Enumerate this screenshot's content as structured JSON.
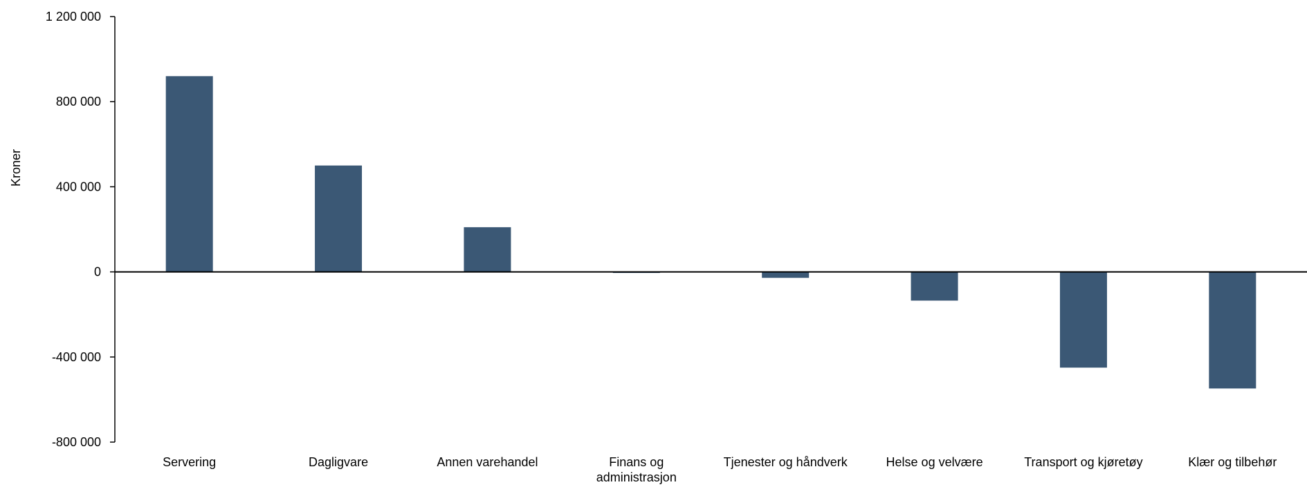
{
  "chart_data": {
    "type": "bar",
    "title": "",
    "xlabel": "",
    "ylabel": "Kroner",
    "ylim": [
      -800000,
      1200000
    ],
    "yticks": [
      -800000,
      -400000,
      0,
      400000,
      800000,
      1200000
    ],
    "ytick_labels": [
      "-800 000",
      "-400 000",
      "0",
      "400 000",
      "800 000",
      "1 200 000"
    ],
    "categories": [
      [
        "Servering"
      ],
      [
        "Dagligvare"
      ],
      [
        "Annen varehandel"
      ],
      [
        "Finans og",
        "administrasjon"
      ],
      [
        "Tjenester og håndverk"
      ],
      [
        "Helse og velvære"
      ],
      [
        "Transport og kjøretøy"
      ],
      [
        "Klær og tilbehør"
      ]
    ],
    "values": [
      920000,
      500000,
      210000,
      -5000,
      -28000,
      -135000,
      -450000,
      -548000
    ],
    "grid": false,
    "legend": "none",
    "bar_color": "#3b5875"
  }
}
